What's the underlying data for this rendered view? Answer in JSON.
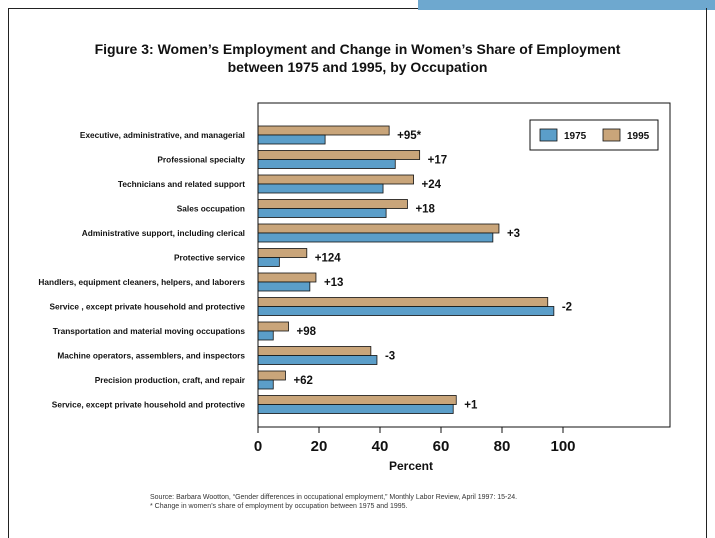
{
  "figure": {
    "title_line1": "Figure 3: Women’s Employment and Change in Women’s Share of Employment",
    "title_line2": "between 1975 and 1995, by Occupation",
    "source_line1": "Source: Barbara Wootton, “Gender differences in occupational employment,” Monthly Labor Review, April 1997: 15-24.",
    "source_line2": "* Change in women’s share of employment by occupation between 1975 and 1995."
  },
  "colors": {
    "series_1975": "#5b9ec9",
    "series_1995": "#c9a57a",
    "accent_tab": "#6ea8cf"
  },
  "chart_data": {
    "type": "bar",
    "orientation": "horizontal",
    "categories": [
      "Executive, administrative, and managerial",
      "Professional specialty",
      "Technicians and related support",
      "Sales occupation",
      "Administrative support, including clerical",
      "Protective service",
      "Handlers, equipment cleaners, helpers, and laborers",
      "Service , except private household and protective",
      "Transportation and material moving occupations",
      "Machine operators, assemblers, and inspectors",
      "Precision production, craft, and repair",
      "Service, except private household and protective"
    ],
    "series": [
      {
        "name": "1975",
        "values": [
          22,
          45,
          41,
          42,
          77,
          7,
          17,
          97,
          5,
          39,
          5,
          64
        ]
      },
      {
        "name": "1995",
        "values": [
          43,
          53,
          51,
          49,
          79,
          16,
          19,
          95,
          10,
          37,
          9,
          65
        ]
      }
    ],
    "annotations": [
      "+95*",
      "+17",
      "+24",
      "+18",
      "+3",
      "+124",
      "+13",
      "-2",
      "+98",
      "-3",
      "+62",
      "+1"
    ],
    "xlabel": "Percent",
    "ylabel": "",
    "xlim": [
      0,
      100
    ],
    "xticks": [
      "0",
      "20",
      "40",
      "60",
      "80",
      "100"
    ],
    "grid": false,
    "legend_position": "top-right"
  }
}
